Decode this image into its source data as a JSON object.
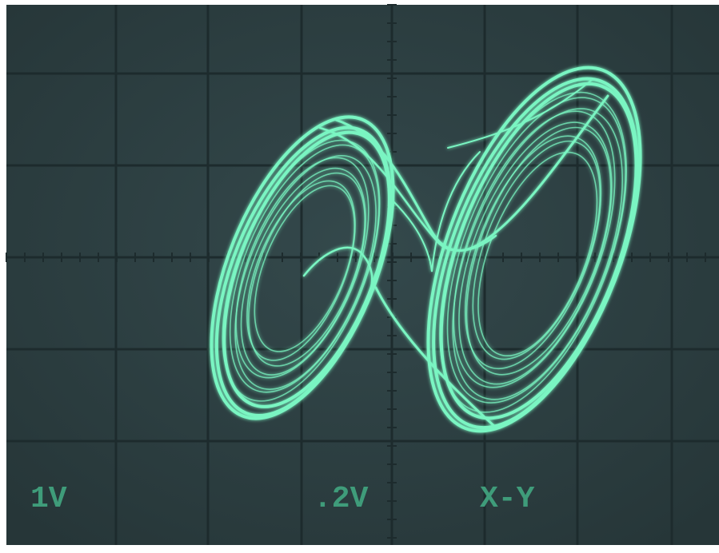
{
  "screen": {
    "readouts": [
      "1V",
      ".2V",
      "X-Y"
    ]
  }
}
